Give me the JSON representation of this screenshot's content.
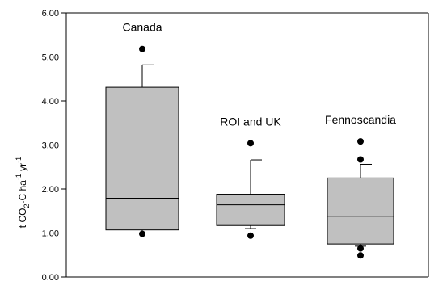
{
  "chart_data": {
    "type": "box",
    "ylabel": {
      "prefix": "t CO",
      "sub": "2",
      "mid": "-C ha",
      "sup1": "-1",
      "mid2": " yr",
      "sup2": "-1"
    },
    "ylim": [
      0,
      6
    ],
    "yticks": [
      "0.00",
      "1.00",
      "2.00",
      "3.00",
      "4.00",
      "5.00",
      "6.00"
    ],
    "grid": false,
    "legend": "none",
    "box_fill": "#c0c0c0",
    "outlier_color": "#000000",
    "categories": [
      {
        "name": "Canada",
        "min": 1.0,
        "q1": 1.07,
        "median": 1.79,
        "q3": 4.31,
        "max": 4.82,
        "outliers": [
          5.18,
          0.98
        ]
      },
      {
        "name": "ROI and UK",
        "min": 1.1,
        "q1": 1.17,
        "median": 1.64,
        "q3": 1.88,
        "max": 2.66,
        "outliers": [
          3.04,
          0.94
        ]
      },
      {
        "name": "Fennoscandia",
        "min": 0.7,
        "q1": 0.75,
        "median": 1.38,
        "q3": 2.25,
        "max": 2.56,
        "outliers": [
          3.08,
          2.67,
          0.65,
          0.49
        ]
      }
    ]
  }
}
